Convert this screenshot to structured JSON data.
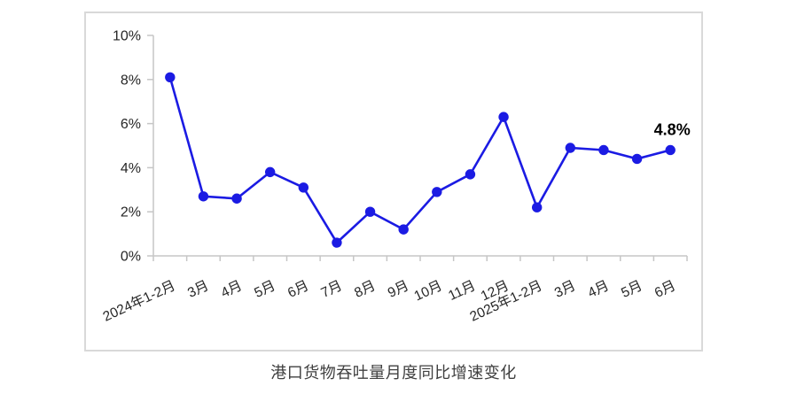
{
  "caption": "港口货物吞吐量月度同比增速变化",
  "colors": {
    "line": "#1b1be3",
    "marker": "#1b1be3",
    "axis": "#c6c6c6",
    "axis_text": "#262626",
    "annotation_text": "#000000",
    "frame_border": "#d9d9d9",
    "caption_text": "#404040",
    "background": "#ffffff"
  },
  "chart_data": {
    "type": "line",
    "title": "港口货物吞吐量月度同比增速变化",
    "categories": [
      "2024年1-2月",
      "3月",
      "4月",
      "5月",
      "6月",
      "7月",
      "8月",
      "9月",
      "10月",
      "11月",
      "12月",
      "2025年1-2月",
      "3月",
      "4月",
      "5月",
      "6月"
    ],
    "series": [
      {
        "name": "港口货物吞吐量月度同比增速",
        "values": [
          8.1,
          2.7,
          2.6,
          3.8,
          3.1,
          0.6,
          2.0,
          1.2,
          2.9,
          3.7,
          6.3,
          2.2,
          4.9,
          4.8,
          4.4,
          4.8
        ]
      }
    ],
    "xlabel": "",
    "ylabel": "",
    "ylim": [
      0,
      10
    ],
    "ytick_step": 2,
    "ytick_labels": [
      "0%",
      "2%",
      "4%",
      "6%",
      "8%",
      "10%"
    ],
    "xtick_rotation_deg": -25,
    "grid": false,
    "legend": "none",
    "marker": "circle",
    "annotations": [
      {
        "target_index": 15,
        "text": "4.8%"
      }
    ]
  }
}
